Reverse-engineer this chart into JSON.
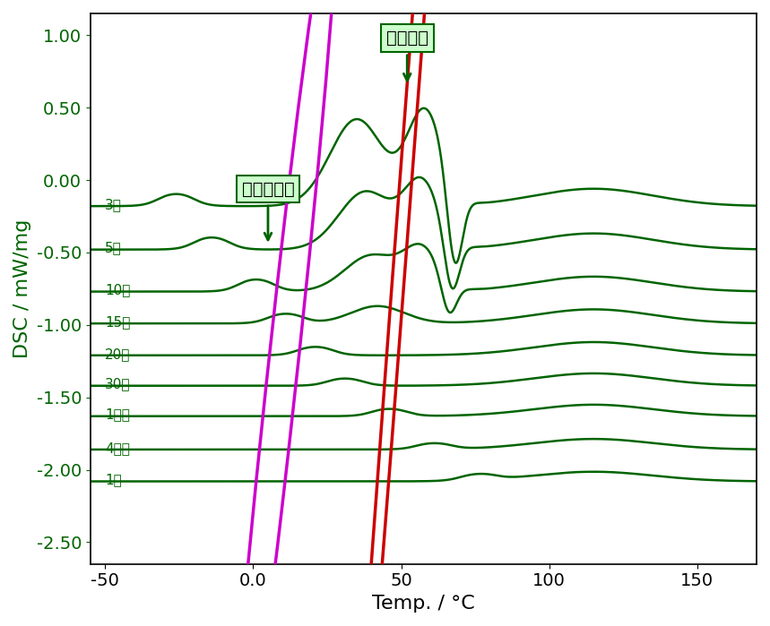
{
  "curve_color": "#006400",
  "background_color": "#ffffff",
  "xlabel": "Temp. / °C",
  "ylabel": "DSC / mW/mg",
  "xlim": [
    -55,
    170
  ],
  "ylim": [
    -2.65,
    1.15
  ],
  "xticks": [
    -50,
    0.0,
    50,
    100,
    150
  ],
  "yticks": [
    1.0,
    0.5,
    0.0,
    -0.5,
    -1.0,
    -1.5,
    -2.0,
    -2.5
  ],
  "xlabel_fontsize": 16,
  "ylabel_fontsize": 16,
  "tick_fontsize": 14,
  "curve_labels": [
    "3分",
    "5分",
    "10分",
    "15分",
    "20分",
    "30分",
    "1時間",
    "4時間",
    "1日"
  ],
  "label_color": "#006400",
  "annotation1_text": "固化反应",
  "annotation2_text": "玻璃化转变",
  "annotation_bg": "#ccffcc",
  "annotation_border": "#006400",
  "red_ellipse_color": "#cc0000",
  "magenta_ellipse_color": "#cc00cc",
  "line_width": 1.8
}
